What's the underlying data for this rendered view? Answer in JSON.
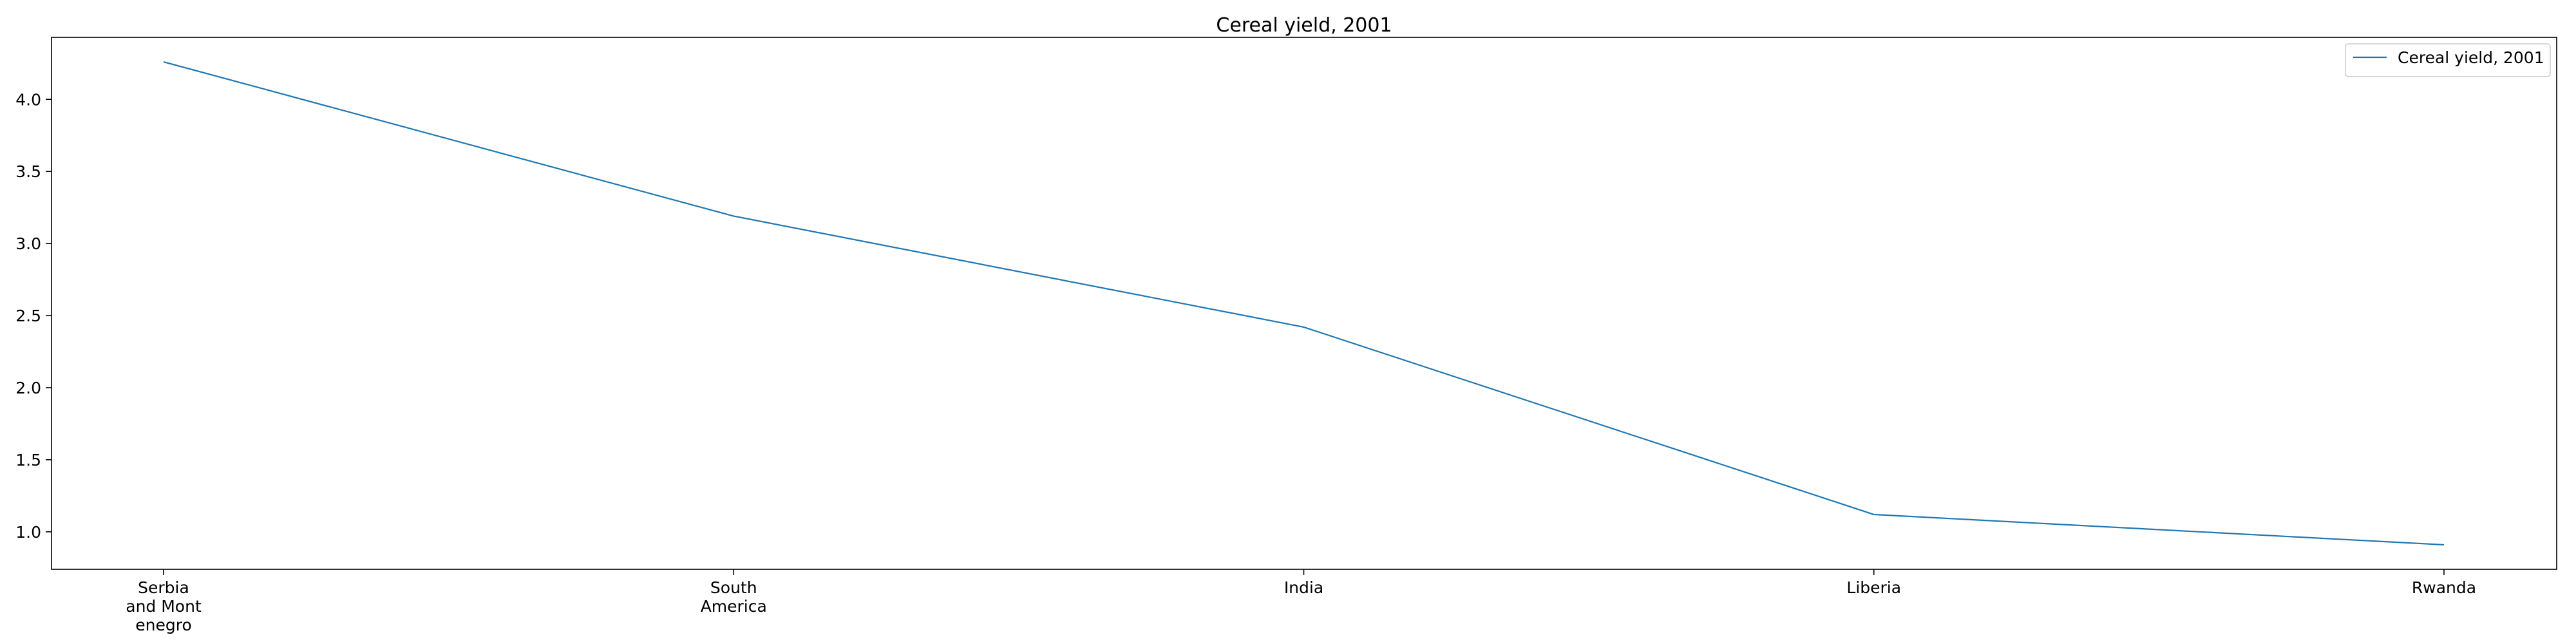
{
  "chart_data": {
    "type": "line",
    "title": "Cereal yield, 2001",
    "xlabel": "",
    "ylabel": "",
    "categories": [
      [
        "Serbia",
        "and Mont",
        "enegro"
      ],
      [
        "South",
        "America"
      ],
      [
        "India"
      ],
      [
        "Liberia"
      ],
      [
        "Rwanda"
      ]
    ],
    "series": [
      {
        "name": "Cereal yield, 2001",
        "values": [
          4.26,
          3.19,
          2.42,
          1.12,
          0.91
        ]
      }
    ],
    "yticks": [
      "1.0",
      "1.5",
      "2.0",
      "2.5",
      "3.0",
      "3.5",
      "4.0"
    ],
    "ylim": [
      0.74,
      4.43
    ],
    "grid": false,
    "legend_position": "top-right",
    "line_color": "#1f77b4"
  }
}
